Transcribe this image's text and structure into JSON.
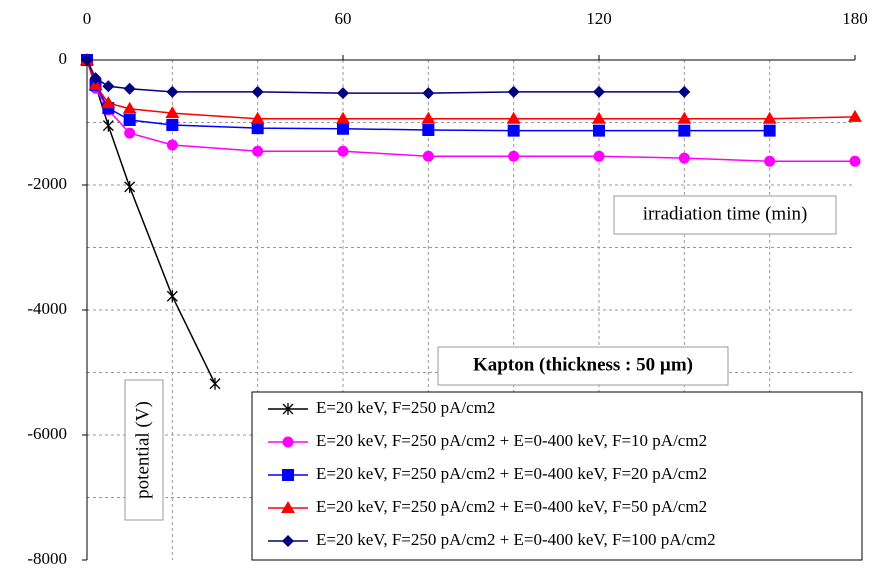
{
  "chart_data": {
    "type": "line",
    "xlim": [
      0,
      180
    ],
    "xticks": [
      0,
      60,
      120,
      180
    ],
    "x_grid": [
      20,
      40,
      60,
      80,
      100,
      120,
      140,
      160
    ],
    "ylim": [
      -8000,
      0
    ],
    "yticks": [
      0,
      -2000,
      -4000,
      -6000,
      -8000
    ],
    "y_grid": [
      -1000,
      -2000,
      -3000,
      -4000,
      -5000,
      -6000,
      -7000
    ],
    "grid": true,
    "x_axis_position": "top",
    "x_label": "irradiation time (min)",
    "y_label": "potential (V)",
    "annotation": "Kapton (thickness : 50 µm)",
    "legend": "bottom-right",
    "series": [
      {
        "name": "E=20 keV, F=250 pA/cm2",
        "color": "#000000",
        "marker": "star",
        "x": [
          0,
          2,
          5,
          10,
          20,
          30
        ],
        "values": [
          0,
          -400,
          -1050,
          -2030,
          -3780,
          -5180
        ]
      },
      {
        "name": "E=20 keV, F=250 pA/cm2 + E=0-400 keV, F=10 pA/cm2",
        "color": "#ff00ff",
        "marker": "circle",
        "x": [
          0,
          2,
          5,
          10,
          20,
          40,
          60,
          80,
          100,
          120,
          140,
          160,
          180
        ],
        "values": [
          0,
          -450,
          -800,
          -1170,
          -1360,
          -1460,
          -1460,
          -1540,
          -1540,
          -1540,
          -1570,
          -1620,
          -1620
        ]
      },
      {
        "name": "E=20 keV, F=250 pA/cm2 + E=0-400 keV, F=20 pA/cm2",
        "color": "#0000ff",
        "marker": "square",
        "x": [
          0,
          2,
          5,
          10,
          20,
          40,
          60,
          80,
          100,
          120,
          140,
          160
        ],
        "values": [
          0,
          -400,
          -770,
          -960,
          -1040,
          -1090,
          -1100,
          -1120,
          -1130,
          -1130,
          -1130,
          -1130
        ]
      },
      {
        "name": "E=20 keV, F=250 pA/cm2 + E=0-400 keV, F=50 pA/cm2",
        "color": "#ff0000",
        "marker": "triangle",
        "x": [
          0,
          2,
          5,
          10,
          20,
          40,
          60,
          80,
          100,
          120,
          140,
          160,
          180
        ],
        "values": [
          0,
          -400,
          -690,
          -780,
          -850,
          -940,
          -940,
          -940,
          -940,
          -940,
          -940,
          -940,
          -910
        ]
      },
      {
        "name": "E=20 keV, F=250 pA/cm2 + E=0-400 keV, F=100 pA/cm2",
        "color": "#000080",
        "marker": "diamond",
        "x": [
          0,
          2,
          5,
          10,
          20,
          40,
          60,
          80,
          100,
          120,
          140
        ],
        "values": [
          0,
          -290,
          -420,
          -460,
          -510,
          -510,
          -530,
          -530,
          -510,
          -510,
          -510
        ]
      }
    ]
  }
}
